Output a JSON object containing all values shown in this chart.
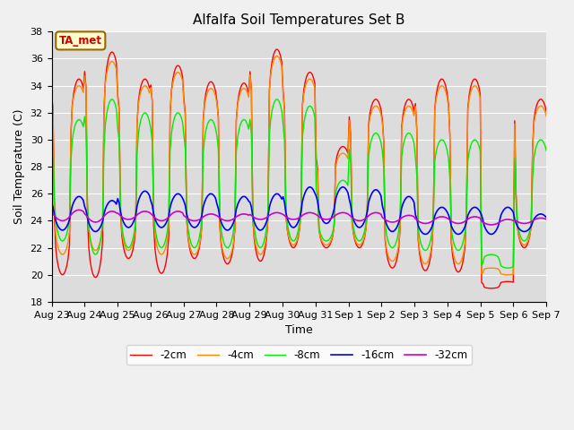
{
  "title": "Alfalfa Soil Temperatures Set B",
  "xlabel": "Time",
  "ylabel": "Soil Temperature (C)",
  "ylim": [
    18,
    38
  ],
  "yticks": [
    18,
    20,
    22,
    24,
    26,
    28,
    30,
    32,
    34,
    36,
    38
  ],
  "plot_bg_color": "#dcdcdc",
  "fig_bg_color": "#f0f0f0",
  "annotation_text": "TA_met",
  "annotation_color": "#cc0000",
  "annotation_bg": "#ffffcc",
  "annotation_border": "#996600",
  "line_colors": {
    "-2cm": "#ff0000",
    "-4cm": "#ff8800",
    "-8cm": "#00ee00",
    "-16cm": "#0000ff",
    "-32cm": "#cc00cc"
  },
  "legend_labels": [
    "-2cm",
    "-4cm",
    "-8cm",
    "-16cm",
    "-32cm"
  ],
  "x_tick_labels": [
    "Aug 23",
    "Aug 24",
    "Aug 25",
    "Aug 26",
    "Aug 27",
    "Aug 28",
    "Aug 29",
    "Aug 30",
    "Aug 31",
    "Sep 1",
    "Sep 2",
    "Sep 3",
    "Sep 4",
    "Sep 5",
    "Sep 6",
    "Sep 7"
  ]
}
